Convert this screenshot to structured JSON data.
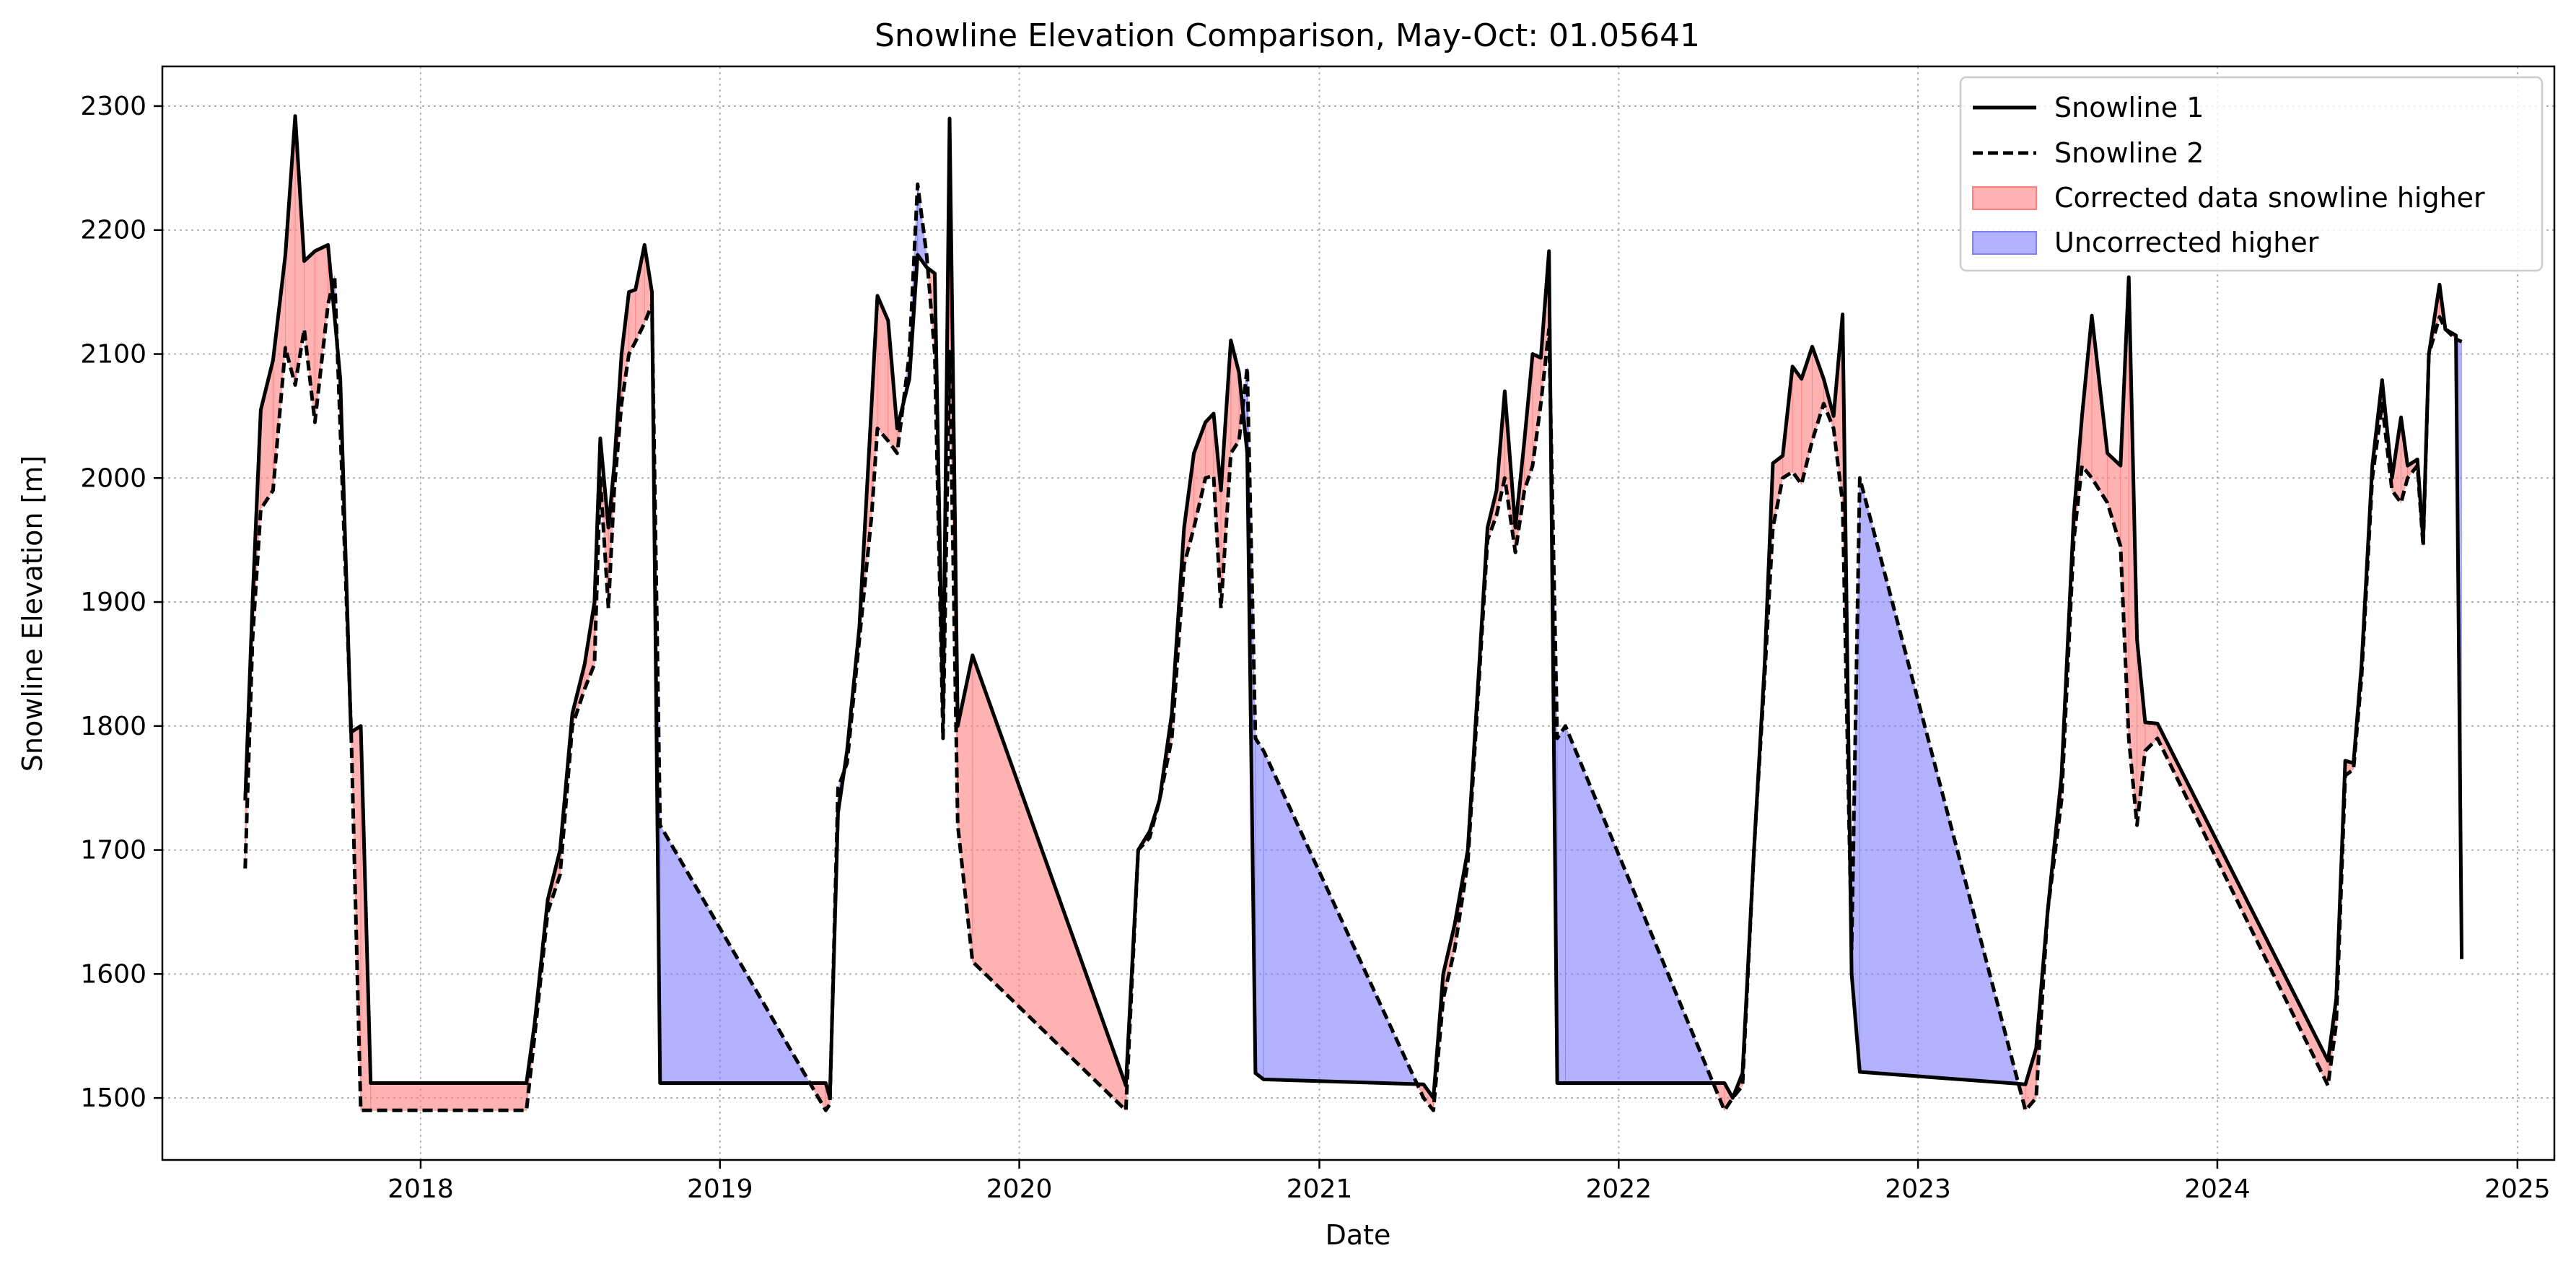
{
  "chart_data": {
    "type": "line",
    "title": "Snowline Elevation Comparison, May-Oct: 01.05641",
    "xlabel": "Date",
    "ylabel": "Snowline Elevation [m]",
    "xlim": [
      "2017-02-20",
      "2025-02-15"
    ],
    "ylim": [
      1450,
      2332
    ],
    "x_ticks": [
      "2018",
      "2019",
      "2020",
      "2021",
      "2022",
      "2023",
      "2024",
      "2025"
    ],
    "x_tick_dates": [
      "2018-01-01",
      "2019-01-01",
      "2020-01-01",
      "2021-01-01",
      "2022-01-01",
      "2023-01-01",
      "2024-01-01",
      "2025-01-01"
    ],
    "y_ticks": [
      1500,
      1600,
      1700,
      1800,
      1900,
      2000,
      2100,
      2200,
      2300
    ],
    "grid": true,
    "legend_position": "top-right",
    "legend": [
      "Snowline 1",
      "Snowline 2",
      "Corrected data snowline higher",
      "Uncorrected higher"
    ],
    "colors": {
      "snowline_1": "#000000",
      "snowline_2": "#000000",
      "corrected_higher_fill": "#ff7f7f",
      "uncorrected_higher_fill": "#7f7fff"
    },
    "series": [
      {
        "name": "Snowline 1",
        "style": "solid",
        "points": [
          [
            "2017-06-01",
            1740
          ],
          [
            "2017-06-10",
            1900
          ],
          [
            "2017-06-20",
            2055
          ],
          [
            "2017-07-05",
            2095
          ],
          [
            "2017-07-20",
            2180
          ],
          [
            "2017-08-01",
            2292
          ],
          [
            "2017-08-12",
            2175
          ],
          [
            "2017-08-25",
            2183
          ],
          [
            "2017-09-10",
            2188
          ],
          [
            "2017-09-25",
            2080
          ],
          [
            "2017-10-08",
            1795
          ],
          [
            "2017-10-20",
            1800
          ],
          [
            "2017-11-01",
            1512
          ],
          [
            "2018-05-10",
            1512
          ],
          [
            "2018-05-20",
            1560
          ],
          [
            "2018-06-05",
            1660
          ],
          [
            "2018-06-20",
            1700
          ],
          [
            "2018-07-05",
            1810
          ],
          [
            "2018-07-20",
            1850
          ],
          [
            "2018-08-01",
            1900
          ],
          [
            "2018-08-08",
            2032
          ],
          [
            "2018-08-18",
            1960
          ],
          [
            "2018-08-25",
            2010
          ],
          [
            "2018-09-03",
            2100
          ],
          [
            "2018-09-12",
            2150
          ],
          [
            "2018-09-20",
            2152
          ],
          [
            "2018-10-01",
            2188
          ],
          [
            "2018-10-10",
            2150
          ],
          [
            "2018-10-20",
            1512
          ],
          [
            "2019-05-10",
            1512
          ],
          [
            "2019-05-15",
            1500
          ],
          [
            "2019-05-25",
            1730
          ],
          [
            "2019-06-05",
            1780
          ],
          [
            "2019-06-20",
            1880
          ],
          [
            "2019-07-05",
            2060
          ],
          [
            "2019-07-12",
            2147
          ],
          [
            "2019-07-25",
            2127
          ],
          [
            "2019-08-05",
            2040
          ],
          [
            "2019-08-20",
            2080
          ],
          [
            "2019-08-30",
            2180
          ],
          [
            "2019-09-10",
            2170
          ],
          [
            "2019-09-20",
            2165
          ],
          [
            "2019-09-30",
            1810
          ],
          [
            "2019-10-08",
            2290
          ],
          [
            "2019-10-18",
            1800
          ],
          [
            "2019-11-05",
            1857
          ],
          [
            "2020-05-10",
            1510
          ],
          [
            "2020-05-25",
            1700
          ],
          [
            "2020-06-08",
            1715
          ],
          [
            "2020-06-20",
            1740
          ],
          [
            "2020-07-05",
            1810
          ],
          [
            "2020-07-20",
            1960
          ],
          [
            "2020-08-01",
            2020
          ],
          [
            "2020-08-15",
            2045
          ],
          [
            "2020-08-25",
            2052
          ],
          [
            "2020-09-03",
            1990
          ],
          [
            "2020-09-15",
            2111
          ],
          [
            "2020-09-25",
            2085
          ],
          [
            "2020-10-05",
            2020
          ],
          [
            "2020-10-15",
            1520
          ],
          [
            "2020-10-25",
            1515
          ],
          [
            "2021-05-08",
            1511
          ],
          [
            "2021-05-20",
            1500
          ],
          [
            "2021-06-01",
            1600
          ],
          [
            "2021-06-15",
            1640
          ],
          [
            "2021-07-01",
            1700
          ],
          [
            "2021-07-15",
            1850
          ],
          [
            "2021-07-25",
            1960
          ],
          [
            "2021-08-05",
            1990
          ],
          [
            "2021-08-15",
            2070
          ],
          [
            "2021-08-28",
            1960
          ],
          [
            "2021-09-08",
            2030
          ],
          [
            "2021-09-18",
            2100
          ],
          [
            "2021-09-28",
            2097
          ],
          [
            "2021-10-08",
            2183
          ],
          [
            "2021-10-18",
            1512
          ],
          [
            "2022-05-10",
            1512
          ],
          [
            "2022-05-20",
            1500
          ],
          [
            "2022-06-01",
            1520
          ],
          [
            "2022-06-15",
            1700
          ],
          [
            "2022-06-28",
            1850
          ],
          [
            "2022-07-08",
            2012
          ],
          [
            "2022-07-20",
            2018
          ],
          [
            "2022-08-01",
            2090
          ],
          [
            "2022-08-12",
            2080
          ],
          [
            "2022-08-25",
            2106
          ],
          [
            "2022-09-08",
            2080
          ],
          [
            "2022-09-20",
            2050
          ],
          [
            "2022-10-01",
            2132
          ],
          [
            "2022-10-12",
            1600
          ],
          [
            "2022-10-22",
            1521
          ],
          [
            "2023-05-12",
            1511
          ],
          [
            "2023-05-25",
            1540
          ],
          [
            "2023-06-08",
            1650
          ],
          [
            "2023-06-25",
            1760
          ],
          [
            "2023-07-10",
            1970
          ],
          [
            "2023-07-20",
            2050
          ],
          [
            "2023-08-01",
            2131
          ],
          [
            "2023-08-20",
            2020
          ],
          [
            "2023-09-05",
            2010
          ],
          [
            "2023-09-15",
            2162
          ],
          [
            "2023-09-25",
            1870
          ],
          [
            "2023-10-05",
            1803
          ],
          [
            "2023-10-20",
            1802
          ],
          [
            "2024-05-15",
            1530
          ],
          [
            "2024-05-25",
            1580
          ],
          [
            "2024-06-05",
            1772
          ],
          [
            "2024-06-15",
            1770
          ],
          [
            "2024-06-25",
            1850
          ],
          [
            "2024-07-08",
            2010
          ],
          [
            "2024-07-20",
            2079
          ],
          [
            "2024-08-01",
            2000
          ],
          [
            "2024-08-12",
            2049
          ],
          [
            "2024-08-20",
            2010
          ],
          [
            "2024-09-01",
            2015
          ],
          [
            "2024-09-08",
            1950
          ],
          [
            "2024-09-15",
            2100
          ],
          [
            "2024-09-28",
            2156
          ],
          [
            "2024-10-05",
            2120
          ],
          [
            "2024-10-18",
            2115
          ],
          [
            "2024-10-25",
            1612
          ]
        ]
      },
      {
        "name": "Snowline 2",
        "style": "dashed",
        "points": [
          [
            "2017-06-01",
            1685
          ],
          [
            "2017-06-10",
            1870
          ],
          [
            "2017-06-20",
            1975
          ],
          [
            "2017-07-05",
            1990
          ],
          [
            "2017-07-20",
            2105
          ],
          [
            "2017-08-01",
            2075
          ],
          [
            "2017-08-12",
            2120
          ],
          [
            "2017-08-25",
            2045
          ],
          [
            "2017-09-10",
            2140
          ],
          [
            "2017-09-18",
            2163
          ],
          [
            "2017-09-25",
            2040
          ],
          [
            "2017-10-08",
            1800
          ],
          [
            "2017-10-20",
            1490
          ],
          [
            "2018-05-10",
            1490
          ],
          [
            "2018-05-20",
            1550
          ],
          [
            "2018-06-05",
            1650
          ],
          [
            "2018-06-20",
            1680
          ],
          [
            "2018-07-05",
            1800
          ],
          [
            "2018-07-20",
            1830
          ],
          [
            "2018-08-01",
            1850
          ],
          [
            "2018-08-08",
            2000
          ],
          [
            "2018-08-18",
            1895
          ],
          [
            "2018-08-25",
            1990
          ],
          [
            "2018-09-03",
            2060
          ],
          [
            "2018-09-12",
            2100
          ],
          [
            "2018-09-20",
            2110
          ],
          [
            "2018-10-01",
            2125
          ],
          [
            "2018-10-10",
            2140
          ],
          [
            "2018-10-20",
            1720
          ],
          [
            "2019-05-10",
            1490
          ],
          [
            "2019-05-15",
            1495
          ],
          [
            "2019-05-25",
            1750
          ],
          [
            "2019-06-05",
            1770
          ],
          [
            "2019-06-20",
            1870
          ],
          [
            "2019-07-05",
            1970
          ],
          [
            "2019-07-12",
            2040
          ],
          [
            "2019-07-25",
            2030
          ],
          [
            "2019-08-05",
            2020
          ],
          [
            "2019-08-20",
            2100
          ],
          [
            "2019-08-30",
            2237
          ],
          [
            "2019-09-10",
            2180
          ],
          [
            "2019-09-20",
            2100
          ],
          [
            "2019-09-30",
            1790
          ],
          [
            "2019-10-08",
            2102
          ],
          [
            "2019-10-18",
            1720
          ],
          [
            "2019-11-05",
            1610
          ],
          [
            "2020-05-10",
            1490
          ],
          [
            "2020-05-25",
            1700
          ],
          [
            "2020-06-08",
            1710
          ],
          [
            "2020-06-20",
            1740
          ],
          [
            "2020-07-05",
            1790
          ],
          [
            "2020-07-20",
            1930
          ],
          [
            "2020-08-01",
            1960
          ],
          [
            "2020-08-15",
            2000
          ],
          [
            "2020-08-25",
            2002
          ],
          [
            "2020-09-03",
            1895
          ],
          [
            "2020-09-15",
            2020
          ],
          [
            "2020-09-25",
            2030
          ],
          [
            "2020-10-05",
            2089
          ],
          [
            "2020-10-15",
            1790
          ],
          [
            "2020-10-25",
            1780
          ],
          [
            "2021-05-08",
            1500
          ],
          [
            "2021-05-20",
            1490
          ],
          [
            "2021-06-01",
            1580
          ],
          [
            "2021-06-15",
            1620
          ],
          [
            "2021-07-01",
            1690
          ],
          [
            "2021-07-15",
            1840
          ],
          [
            "2021-07-25",
            1950
          ],
          [
            "2021-08-05",
            1970
          ],
          [
            "2021-08-15",
            2000
          ],
          [
            "2021-08-28",
            1940
          ],
          [
            "2021-09-08",
            1990
          ],
          [
            "2021-09-18",
            2010
          ],
          [
            "2021-09-28",
            2060
          ],
          [
            "2021-10-08",
            2120
          ],
          [
            "2021-10-18",
            1790
          ],
          [
            "2021-10-28",
            1800
          ],
          [
            "2022-05-10",
            1490
          ],
          [
            "2022-05-20",
            1500
          ],
          [
            "2022-06-01",
            1510
          ],
          [
            "2022-06-15",
            1700
          ],
          [
            "2022-06-28",
            1840
          ],
          [
            "2022-07-08",
            1960
          ],
          [
            "2022-07-20",
            2000
          ],
          [
            "2022-08-01",
            2005
          ],
          [
            "2022-08-12",
            1995
          ],
          [
            "2022-08-25",
            2030
          ],
          [
            "2022-09-08",
            2060
          ],
          [
            "2022-09-20",
            2040
          ],
          [
            "2022-10-01",
            1980
          ],
          [
            "2022-10-12",
            1620
          ],
          [
            "2022-10-22",
            2000
          ],
          [
            "2023-05-12",
            1490
          ],
          [
            "2023-05-25",
            1500
          ],
          [
            "2023-06-08",
            1650
          ],
          [
            "2023-06-25",
            1740
          ],
          [
            "2023-07-10",
            1950
          ],
          [
            "2023-07-20",
            2010
          ],
          [
            "2023-08-01",
            2000
          ],
          [
            "2023-08-20",
            1980
          ],
          [
            "2023-09-05",
            1945
          ],
          [
            "2023-09-15",
            1790
          ],
          [
            "2023-09-25",
            1720
          ],
          [
            "2023-10-05",
            1780
          ],
          [
            "2023-10-20",
            1790
          ],
          [
            "2024-05-15",
            1510
          ],
          [
            "2024-05-25",
            1560
          ],
          [
            "2024-06-05",
            1760
          ],
          [
            "2024-06-15",
            1765
          ],
          [
            "2024-06-25",
            1840
          ],
          [
            "2024-07-08",
            2000
          ],
          [
            "2024-07-20",
            2060
          ],
          [
            "2024-08-01",
            1990
          ],
          [
            "2024-08-12",
            1980
          ],
          [
            "2024-08-20",
            2000
          ],
          [
            "2024-09-01",
            2010
          ],
          [
            "2024-09-08",
            1945
          ],
          [
            "2024-09-15",
            2100
          ],
          [
            "2024-09-28",
            2130
          ],
          [
            "2024-10-05",
            2120
          ],
          [
            "2024-10-18",
            2112
          ],
          [
            "2024-10-25",
            2110
          ]
        ]
      }
    ]
  }
}
